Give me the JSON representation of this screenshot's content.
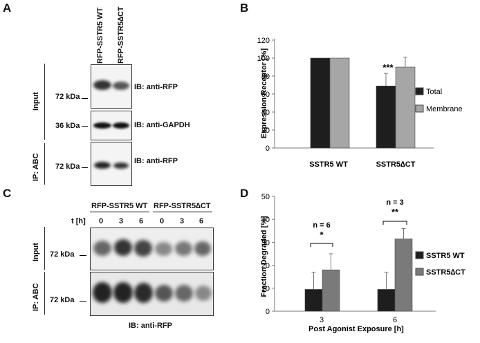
{
  "panel_labels": {
    "A": "A",
    "B": "B",
    "C": "C",
    "D": "D"
  },
  "panel_A": {
    "lane_labels": [
      "RFP-SSTR5 WT",
      "RFP-SSTR5∆CT"
    ],
    "group_labels": {
      "input": "Input",
      "ip": "IP: ABC"
    },
    "markers": [
      "72 kDa",
      "36 kDa",
      "72 kDa"
    ],
    "ib_labels": [
      "IB: anti-RFP",
      "IB: anti-GAPDH",
      "IB: anti-RFP"
    ]
  },
  "panel_C": {
    "group_headers": [
      "RFP-SSTR5 WT",
      "RFP-SSTR5∆CT"
    ],
    "time_label": "t [h]",
    "times": [
      "0",
      "3",
      "6",
      "0",
      "3",
      "6"
    ],
    "row_labels": {
      "input": "Input",
      "ip": "IP: ABC"
    },
    "markers": [
      "72 kDa",
      "72 kDa"
    ],
    "footer": "IB: anti-RFP"
  },
  "colors": {
    "series_dark": "#1e1e1e",
    "series_light": "#a6a6a6",
    "series_mid": "#7a7a7a"
  },
  "chart_data": [
    {
      "panel": "B",
      "type": "bar",
      "categories": [
        "SSTR5 WT",
        "SSTR5∆CT"
      ],
      "series": [
        {
          "name": "Total",
          "values": [
            100,
            69
          ],
          "errors": [
            0,
            14
          ]
        },
        {
          "name": "Membrane",
          "values": [
            100,
            90
          ],
          "errors": [
            0,
            11
          ]
        }
      ],
      "ylabel": "Expression Receptor  [%]",
      "xlabel": "",
      "ylim": [
        0,
        120
      ],
      "yticks": [
        "0",
        "20",
        "40",
        "60",
        "80",
        "100",
        "120"
      ],
      "annotations": [
        "***"
      ],
      "legend": "right"
    },
    {
      "panel": "D",
      "type": "bar",
      "categories": [
        "3",
        "6"
      ],
      "series": [
        {
          "name": "SSTR5 WT",
          "values": [
            9.5,
            9.5
          ],
          "errors": [
            7.5,
            7.5
          ]
        },
        {
          "name": "SSTR5∆CT",
          "values": [
            18,
            31.5
          ],
          "errors": [
            7,
            4.5
          ]
        }
      ],
      "ylabel": "Fraction Degraded [%]",
      "xlabel": "Post Agonist Exposure [h]",
      "ylim": [
        0,
        50
      ],
      "yticks": [
        "0",
        "10",
        "20",
        "30",
        "40",
        "50"
      ],
      "annotations": [
        "n = 6",
        "*",
        "n = 3",
        "**"
      ],
      "legend": "right"
    }
  ]
}
